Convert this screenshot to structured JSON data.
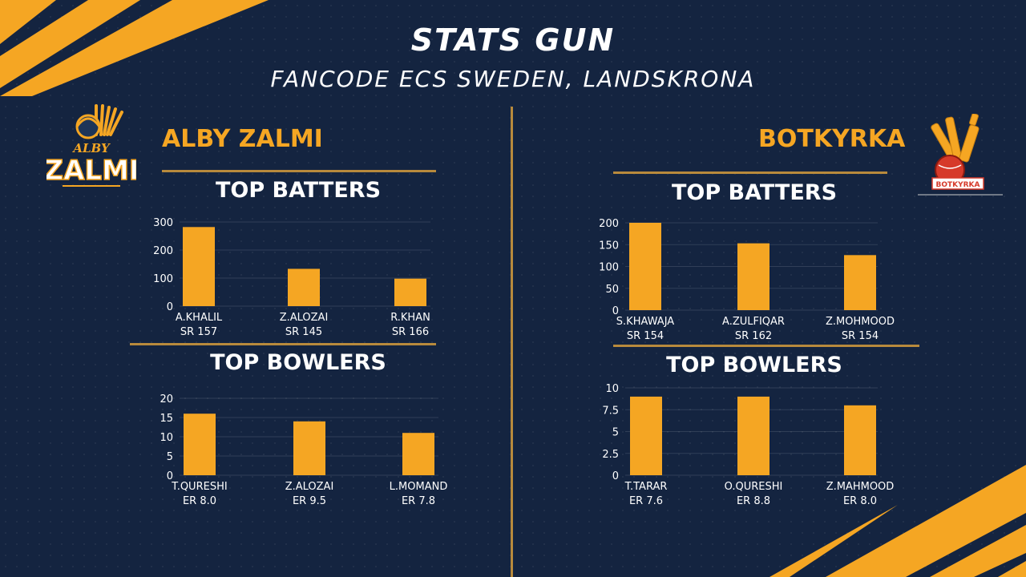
{
  "header": {
    "title": "STATS GUN",
    "subtitle": "FANCODE ECS SWEDEN, LANDSKRONA"
  },
  "colors": {
    "background": "#142440",
    "accent": "#f5a623",
    "bar": "#f5a623",
    "divider": "#b88a3c",
    "text": "#ffffff"
  },
  "teams": {
    "left": {
      "name": "ALBY ZALMI",
      "logo_icon": "alby-zalmi-logo",
      "logo_text_top": "ALBY",
      "logo_text_main": "ZALMI"
    },
    "right": {
      "name": "BOTKYRKA",
      "logo_icon": "botkyrka-logo",
      "logo_text": "BOTKYRKA"
    }
  },
  "sections": {
    "batters": "TOP BATTERS",
    "bowlers": "TOP BOWLERS"
  },
  "chart_data": [
    {
      "type": "bar",
      "team": "ALBY ZALMI",
      "title": "TOP BATTERS",
      "categories": [
        "A.KHALIL",
        "Z.ALOZAI",
        "R.KHAN"
      ],
      "sublabels": [
        "SR 157",
        "SR 145",
        "SR 166"
      ],
      "values": [
        282,
        133,
        98
      ],
      "ylim": [
        0,
        300
      ],
      "yticks": [
        0,
        100,
        200,
        300
      ],
      "ytick_labels": [
        "0",
        "100",
        "200",
        "300"
      ],
      "grid": true
    },
    {
      "type": "bar",
      "team": "ALBY ZALMI",
      "title": "TOP BOWLERS",
      "categories": [
        "T.QURESHI",
        "Z.ALOZAI",
        "L.MOMAND"
      ],
      "sublabels": [
        "ER 8.0",
        "ER 9.5",
        "ER 7.8"
      ],
      "values": [
        16,
        14,
        11
      ],
      "ylim": [
        0,
        20
      ],
      "yticks": [
        0,
        5,
        10,
        15,
        20
      ],
      "ytick_labels": [
        "0",
        "5",
        "10",
        "15",
        "20"
      ],
      "grid": true
    },
    {
      "type": "bar",
      "team": "BOTKYRKA",
      "title": "TOP BATTERS",
      "categories": [
        "S.KHAWAJA",
        "A.ZULFIQAR",
        "Z.MOHMOOD"
      ],
      "sublabels": [
        "SR 154",
        "SR 162",
        "SR 154"
      ],
      "values": [
        200,
        153,
        126
      ],
      "ylim": [
        0,
        200
      ],
      "yticks": [
        0,
        50,
        100,
        150,
        200
      ],
      "ytick_labels": [
        "0",
        "50",
        "100",
        "150",
        "200"
      ],
      "grid": true
    },
    {
      "type": "bar",
      "team": "BOTKYRKA",
      "title": "TOP BOWLERS",
      "categories": [
        "T.TARAR",
        "O.QURESHI",
        "Z.MAHMOOD"
      ],
      "sublabels": [
        "ER 7.6",
        "ER 8.8",
        "ER 8.0"
      ],
      "values": [
        9,
        9,
        8
      ],
      "ylim": [
        0,
        10
      ],
      "yticks": [
        0,
        2.5,
        5,
        7.5,
        10
      ],
      "ytick_labels": [
        "0",
        "2.5",
        "5",
        "7.5",
        "10"
      ],
      "grid": true
    }
  ]
}
